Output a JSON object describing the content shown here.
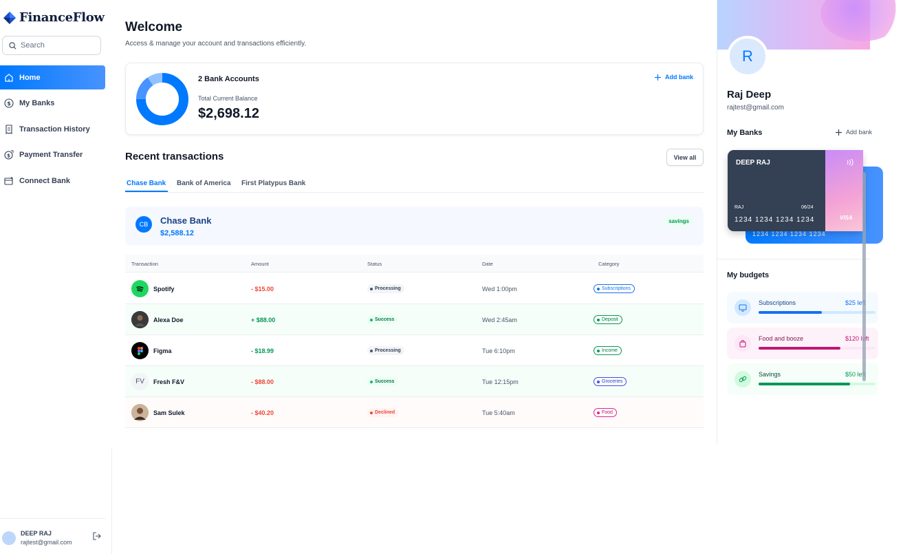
{
  "app": {
    "name": "FinanceFlow"
  },
  "search": {
    "placeholder": "Search"
  },
  "nav": {
    "items": [
      {
        "label": "Home",
        "icon": "home-icon",
        "active": true
      },
      {
        "label": "My Banks",
        "icon": "dollar-circle-icon"
      },
      {
        "label": "Transaction History",
        "icon": "receipt-icon"
      },
      {
        "label": "Payment Transfer",
        "icon": "money-send-icon"
      },
      {
        "label": "Connect Bank",
        "icon": "card-add-icon"
      }
    ]
  },
  "user": {
    "name": "DEEP RAJ",
    "email": "rajtest@gmail.com"
  },
  "header": {
    "title": "Welcome",
    "subtitle": "Access & manage your account and transactions efficiently."
  },
  "balance": {
    "accounts_label": "2 Bank Accounts",
    "total_label": "Total Current Balance",
    "total": "$2,698.12",
    "add_bank": "Add bank"
  },
  "recent": {
    "title": "Recent transactions",
    "view_all": "View all",
    "tabs": [
      "Chase Bank",
      "Bank of America",
      "First Platypus Bank"
    ],
    "bank": {
      "initials": "CB",
      "name": "Chase Bank",
      "balance": "$2,588.12",
      "type": "savings"
    },
    "columns": [
      "Transaction",
      "Amount",
      "Status",
      "Date",
      "Category"
    ],
    "rows": [
      {
        "name": "Spotify",
        "icon": "spotify-icon",
        "amount": "- $15.00",
        "status": "Processing",
        "date": "Wed 1:00pm",
        "category": "Subscriptions"
      },
      {
        "name": "Alexa Doe",
        "icon": "avatar-icon",
        "amount": "+ $88.00",
        "status": "Success",
        "date": "Wed 2:45am",
        "category": "Deposit"
      },
      {
        "name": "Figma",
        "icon": "figma-icon",
        "amount": "- $18.99",
        "status": "Processing",
        "date": "Tue 6:10pm",
        "category": "Income"
      },
      {
        "name": "Fresh F&V",
        "icon": "FV",
        "amount": "- $88.00",
        "status": "Success",
        "date": "Tue 12:15pm",
        "category": "Groceries"
      },
      {
        "name": "Sam Sulek",
        "icon": "avatar-icon",
        "amount": "- $40.20",
        "status": "Declined",
        "date": "Tue 5:40am",
        "category": "Food"
      }
    ]
  },
  "profile": {
    "initial": "R",
    "name": "Raj Deep",
    "email": "rajtest@gmail.com",
    "banks_title": "My Banks",
    "add_bank": "Add bank",
    "card": {
      "name": "DEEP RAJ",
      "holder": "RAJ",
      "expiry": "06/24",
      "number": "1234 1234 1234 1234",
      "brand": "VISA"
    },
    "card_back": {
      "number": "1234 1234 1234 1234"
    },
    "budgets_title": "My budgets",
    "budgets": [
      {
        "name": "Subscriptions",
        "left": "$25 left",
        "progress": 0.54
      },
      {
        "name": "Food and booze",
        "left": "$120 left",
        "progress": 0.7
      },
      {
        "name": "Savings",
        "left": "$50 left",
        "progress": 0.78
      }
    ]
  },
  "colors": {
    "primary": "#0179fe",
    "success": "#039855",
    "danger": "#f04438"
  }
}
